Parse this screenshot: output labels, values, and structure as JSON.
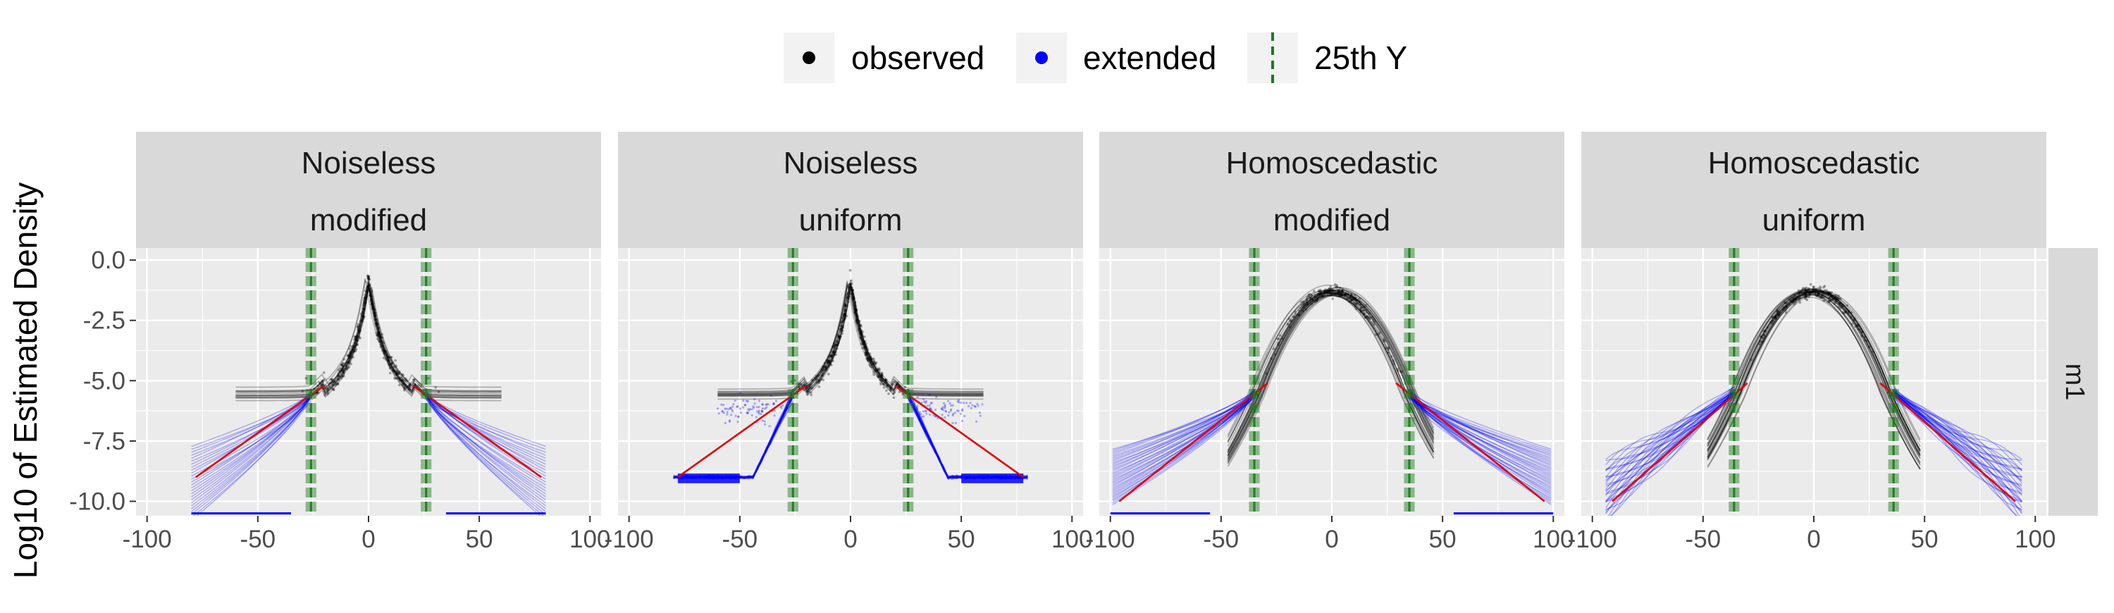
{
  "chart_data": {
    "type": "line",
    "ylabel": "Log10 of Estimated Density",
    "xlabel": "",
    "xlim": [
      -105,
      105
    ],
    "ylim": [
      -10.6,
      0.5
    ],
    "x_ticks": [
      -100,
      -50,
      0,
      50,
      100
    ],
    "x_tick_labels": [
      "-100",
      "-50",
      "0",
      "50",
      "100"
    ],
    "y_ticks": [
      0,
      -2.5,
      -5,
      -7.5,
      -10
    ],
    "y_tick_labels": [
      "0.0",
      "-2.5",
      "-5.0",
      "-7.5",
      "-10.0"
    ],
    "row_strip": "m1",
    "legend": {
      "position": "top",
      "entries": [
        {
          "label": "observed",
          "color": "#000000",
          "shape": "point"
        },
        {
          "label": "extended",
          "color": "#0000ff",
          "shape": "point"
        },
        {
          "label": "25th Y",
          "color": "#1a7a1a",
          "shape": "dashed-vline"
        }
      ]
    },
    "panels": [
      {
        "title_line1": "Noiseless",
        "title_line2": "modified",
        "peak": -0.8,
        "width": 6,
        "cutoff": 26,
        "cutoff_y": -5.6,
        "data_range": 80,
        "tail_end_y": -9.2,
        "red_end_y": -9.0,
        "blue_floor": -10.5,
        "style": "spike-modified"
      },
      {
        "title_line1": "Noiseless",
        "title_line2": "uniform",
        "peak": -0.8,
        "width": 6,
        "cutoff": 26,
        "cutoff_y": -5.6,
        "data_range": 80,
        "tail_end_y": -9.0,
        "red_end_y": -9.0,
        "blue_floor": -9.0,
        "style": "spike-uniform"
      },
      {
        "title_line1": "Homoscedastic",
        "title_line2": "modified",
        "peak": -1.3,
        "width": 22,
        "cutoff": 35,
        "cutoff_y": -5.5,
        "data_range": 100,
        "tail_end_y": -9.0,
        "red_end_y": -10.0,
        "blue_floor": -10.5,
        "style": "gauss-modified"
      },
      {
        "title_line1": "Homoscedastic",
        "title_line2": "uniform",
        "peak": -1.3,
        "width": 22,
        "cutoff": 36,
        "cutoff_y": -5.5,
        "data_range": 95,
        "tail_end_y": -9.6,
        "red_end_y": -10.0,
        "blue_floor": -9.6,
        "style": "gauss-uniform"
      }
    ],
    "colors": {
      "panel_bg": "#ebebeb",
      "grid": "#ffffff",
      "strip_bg": "#d9d9d9",
      "observed": "#000000",
      "extended": "#0000ff",
      "fit": "#e00000",
      "cutoff": "#1a7a1a"
    }
  }
}
